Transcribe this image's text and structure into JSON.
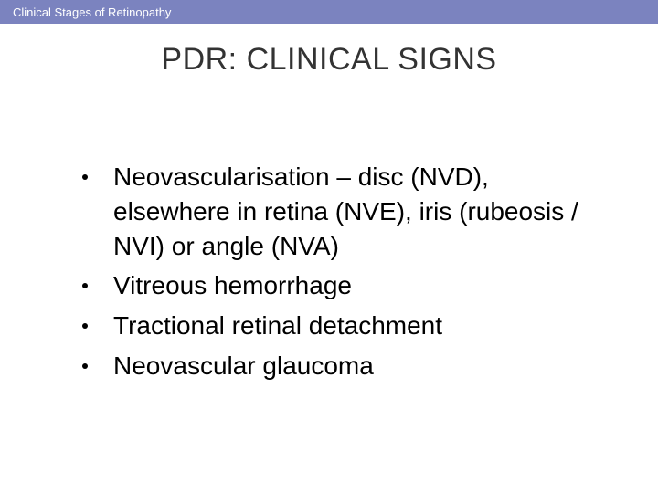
{
  "slide": {
    "header_bar": {
      "text": "Clinical Stages of Retinopathy",
      "background_color": "#7b83bf",
      "text_color": "#ffffff"
    },
    "title": {
      "text": "PDR: CLINICAL SIGNS",
      "color": "#333333"
    },
    "bullets": [
      {
        "text": "Neovascularisation – disc (NVD), elsewhere in retina (NVE), iris (rubeosis / NVI) or angle (NVA)"
      },
      {
        "text": "Vitreous hemorrhage"
      },
      {
        "text": "Tractional retinal detachment"
      },
      {
        "text": "Neovascular glaucoma"
      }
    ],
    "bullet_style": {
      "dot_color": "#000000",
      "text_color": "#000000"
    },
    "background_color": "#ffffff"
  }
}
